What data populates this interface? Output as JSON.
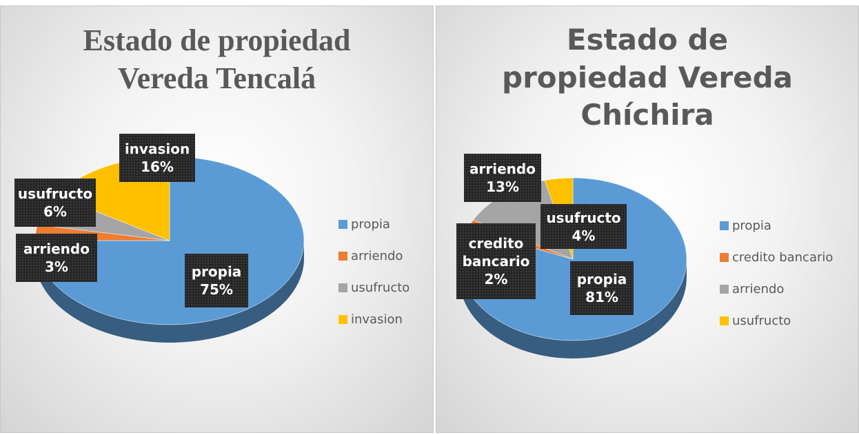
{
  "chart_data": [
    {
      "type": "pie",
      "title": "Estado de propiedad Vereda Tencalá",
      "categories": [
        "propia",
        "arriendo",
        "usufructo",
        "invasion"
      ],
      "values": [
        75,
        3,
        6,
        16
      ],
      "value_labels": [
        "75%",
        "3%",
        "6%",
        "16%"
      ],
      "colors": [
        "#5b9bd5",
        "#ed7d31",
        "#a5a5a5",
        "#ffc000"
      ],
      "legend": "right"
    },
    {
      "type": "pie",
      "title": "Estado de propiedad Vereda Chíchira",
      "categories": [
        "propia",
        "credito bancario",
        "arriendo",
        "usufructo"
      ],
      "values": [
        81,
        2,
        13,
        4
      ],
      "value_labels": [
        "81%",
        "2%",
        "13%",
        "4%"
      ],
      "colors": [
        "#5b9bd5",
        "#ed7d31",
        "#a5a5a5",
        "#ffc000"
      ],
      "legend": "right"
    }
  ]
}
